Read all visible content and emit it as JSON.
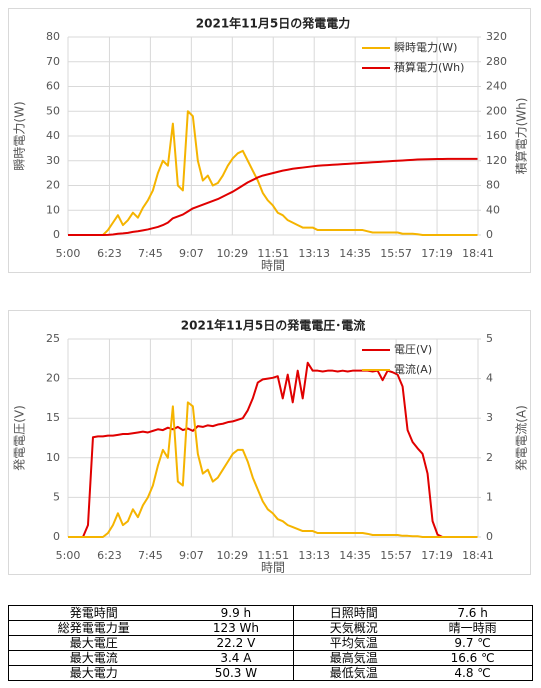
{
  "chart_data": [
    {
      "type": "line",
      "title": "2021年11月5日の発電電力",
      "x_label": "時間",
      "y_label": "瞬時電力(W)",
      "y2_label": "積算電力(Wh)",
      "x": [
        300,
        310,
        320,
        330,
        340,
        350,
        360,
        370,
        380,
        390,
        400,
        410,
        420,
        430,
        440,
        450,
        460,
        470,
        480,
        490,
        500,
        510,
        520,
        530,
        540,
        550,
        560,
        570,
        580,
        590,
        600,
        610,
        620,
        630,
        640,
        650,
        660,
        670,
        680,
        690,
        700,
        710,
        720,
        730,
        740,
        750,
        760,
        770,
        780,
        790,
        800,
        810,
        820,
        830,
        840,
        850,
        860,
        870,
        880,
        890,
        900,
        910,
        920,
        930,
        940,
        950,
        960,
        970,
        980,
        990,
        1000,
        1010,
        1020,
        1030,
        1040,
        1050,
        1060,
        1070,
        1080,
        1090,
        1100,
        1110,
        1120
      ],
      "xlim": [
        300,
        1121
      ],
      "xticks": [
        {
          "value": 300,
          "label": "5:00"
        },
        {
          "value": 383,
          "label": "6:23"
        },
        {
          "value": 465,
          "label": "7:45"
        },
        {
          "value": 547,
          "label": "9:07"
        },
        {
          "value": 629,
          "label": "10:29"
        },
        {
          "value": 711,
          "label": "11:51"
        },
        {
          "value": 793,
          "label": "13:13"
        },
        {
          "value": 875,
          "label": "14:35"
        },
        {
          "value": 957,
          "label": "15:57"
        },
        {
          "value": 1039,
          "label": "17:19"
        },
        {
          "value": 1121,
          "label": "18:41"
        }
      ],
      "ylim": [
        0,
        80
      ],
      "yticks": [
        0,
        10,
        20,
        30,
        40,
        50,
        60,
        70,
        80
      ],
      "y2lim": [
        0,
        320
      ],
      "y2ticks": [
        0,
        40,
        80,
        120,
        160,
        200,
        240,
        280,
        320
      ],
      "grid": true,
      "legend": "upper-right",
      "series": [
        {
          "name": "瞬時電力(W)",
          "color": "#f5b400",
          "values": [
            0,
            0,
            0,
            0,
            0,
            0,
            0,
            0,
            2,
            5,
            8,
            4,
            6,
            9,
            7,
            11,
            14,
            18,
            25,
            30,
            28,
            45,
            20,
            18,
            50,
            48,
            30,
            22,
            24,
            20,
            21,
            24,
            28,
            31,
            33,
            34,
            30,
            26,
            22,
            17,
            14,
            12,
            9,
            8,
            6,
            5,
            4,
            3,
            3,
            3,
            2,
            2,
            2,
            2,
            2,
            2,
            2,
            2,
            2,
            2,
            1.5,
            1,
            1,
            1,
            1,
            1,
            1,
            0.5,
            0.5,
            0.5,
            0.3,
            0,
            0,
            0,
            0,
            0,
            0,
            0,
            0,
            0,
            0,
            0,
            0
          ]
        },
        {
          "name": "積算電力(Wh)",
          "color": "#e00000",
          "axis": "y2",
          "values": [
            0,
            0,
            0,
            0,
            0,
            0,
            0,
            0,
            0.2,
            0.8,
            2,
            2.6,
            3.5,
            5,
            6,
            7.5,
            9,
            11,
            13,
            16,
            20,
            27,
            30,
            33,
            38,
            43,
            46,
            49,
            52,
            55,
            58,
            62,
            66,
            70,
            75,
            80,
            85,
            89,
            93,
            96,
            98,
            100,
            102,
            104,
            105.5,
            107,
            108,
            109,
            110,
            111,
            112,
            112.5,
            113,
            113.5,
            114,
            114.5,
            115,
            115.5,
            116,
            116.5,
            117,
            117.5,
            118,
            118.5,
            119,
            119.5,
            120,
            120.5,
            121,
            121.5,
            122,
            122.3,
            122.5,
            122.7,
            122.8,
            122.9,
            123,
            123,
            123,
            123,
            123,
            123,
            123
          ]
        }
      ]
    },
    {
      "type": "line",
      "title": "2021年11月5日の発電電圧･電流",
      "x_label": "時間",
      "y_label": "発電電圧(V)",
      "y2_label": "発電電流(A)",
      "x": [
        300,
        310,
        320,
        330,
        340,
        350,
        360,
        370,
        380,
        390,
        400,
        410,
        420,
        430,
        440,
        450,
        460,
        470,
        480,
        490,
        500,
        510,
        520,
        530,
        540,
        550,
        560,
        570,
        580,
        590,
        600,
        610,
        620,
        630,
        640,
        650,
        660,
        670,
        680,
        690,
        700,
        710,
        720,
        730,
        740,
        750,
        760,
        770,
        780,
        790,
        800,
        810,
        820,
        830,
        840,
        850,
        860,
        870,
        880,
        890,
        900,
        910,
        920,
        930,
        940,
        950,
        960,
        970,
        980,
        990,
        1000,
        1010,
        1020,
        1030,
        1040,
        1050,
        1060,
        1070,
        1080,
        1090,
        1100,
        1110,
        1120
      ],
      "xlim": [
        300,
        1121
      ],
      "xticks": [
        {
          "value": 300,
          "label": "5:00"
        },
        {
          "value": 383,
          "label": "6:23"
        },
        {
          "value": 465,
          "label": "7:45"
        },
        {
          "value": 547,
          "label": "9:07"
        },
        {
          "value": 629,
          "label": "10:29"
        },
        {
          "value": 711,
          "label": "11:51"
        },
        {
          "value": 793,
          "label": "13:13"
        },
        {
          "value": 875,
          "label": "14:35"
        },
        {
          "value": 957,
          "label": "15:57"
        },
        {
          "value": 1039,
          "label": "17:19"
        },
        {
          "value": 1121,
          "label": "18:41"
        }
      ],
      "ylim": [
        0,
        25
      ],
      "yticks": [
        0,
        5,
        10,
        15,
        20,
        25
      ],
      "y2lim": [
        0,
        5
      ],
      "y2ticks": [
        0,
        1,
        2,
        3,
        4,
        5
      ],
      "grid": true,
      "legend": "upper-right",
      "series": [
        {
          "name": "電圧(V)",
          "color": "#e00000",
          "values": [
            0,
            0,
            0,
            0,
            1.5,
            12.6,
            12.7,
            12.7,
            12.8,
            12.8,
            12.9,
            13,
            13,
            13.1,
            13.2,
            13.3,
            13.2,
            13.4,
            13.6,
            13.5,
            13.8,
            13.6,
            13.9,
            13.5,
            13.7,
            13.4,
            14,
            13.9,
            14.1,
            14,
            14.2,
            14.3,
            14.5,
            14.6,
            14.8,
            15,
            16,
            17.5,
            19.5,
            19.9,
            20,
            20.1,
            20.3,
            17.5,
            20.5,
            17,
            21,
            17.5,
            22,
            21,
            21,
            20.9,
            21,
            21,
            20.9,
            21,
            20.9,
            21,
            21,
            21,
            21,
            20.9,
            21,
            19.8,
            21,
            20.8,
            20.5,
            19,
            13.5,
            12,
            11.2,
            10.5,
            8,
            2,
            0.3,
            0,
            0,
            0,
            0,
            0,
            0,
            0,
            0
          ]
        },
        {
          "name": "電流(A)",
          "color": "#f5b400",
          "axis": "y2",
          "values": [
            0,
            0,
            0,
            0,
            0,
            0,
            0,
            0,
            0.1,
            0.3,
            0.6,
            0.3,
            0.4,
            0.7,
            0.5,
            0.8,
            1,
            1.3,
            1.8,
            2.2,
            2,
            3.3,
            1.4,
            1.3,
            3.4,
            3.3,
            2.1,
            1.6,
            1.7,
            1.4,
            1.5,
            1.7,
            1.9,
            2.1,
            2.2,
            2.2,
            1.9,
            1.5,
            1.2,
            0.9,
            0.7,
            0.6,
            0.45,
            0.4,
            0.3,
            0.25,
            0.2,
            0.15,
            0.15,
            0.15,
            0.1,
            0.1,
            0.1,
            0.1,
            0.1,
            0.1,
            0.1,
            0.1,
            0.1,
            0.1,
            0.08,
            0.05,
            0.05,
            0.05,
            0.05,
            0.05,
            0.05,
            0.03,
            0.03,
            0.02,
            0.02,
            0,
            0,
            0,
            0,
            0,
            0,
            0,
            0,
            0,
            0,
            0,
            0
          ]
        }
      ]
    }
  ],
  "table": {
    "rows": [
      [
        "発電時間",
        "9.9 h",
        "日照時間",
        "7.6 h"
      ],
      [
        "総発電電力量",
        "123 Wh",
        "天気概況",
        "晴一時雨"
      ],
      [
        "最大電圧",
        "22.2 V",
        "平均気温",
        "9.7 ℃"
      ],
      [
        "最大電流",
        "3.4 A",
        "最高気温",
        "16.6 ℃"
      ],
      [
        "最大電力",
        "50.3 W",
        "最低気温",
        "4.8 ℃"
      ]
    ]
  }
}
